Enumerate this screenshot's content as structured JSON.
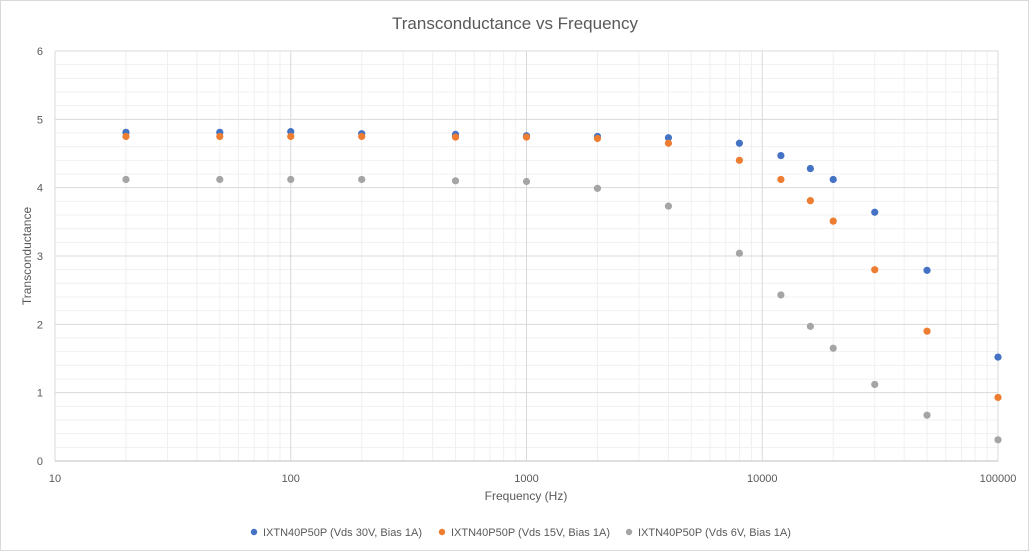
{
  "chart_data": {
    "type": "scatter",
    "title": "Transconductance vs Frequency",
    "xlabel": "Frequency (Hz)",
    "ylabel": "Transconductance",
    "xscale": "log",
    "xlim": [
      10,
      100000
    ],
    "ylim": [
      0,
      6
    ],
    "x_ticks": [
      "10",
      "100",
      "1000",
      "10000",
      "100000"
    ],
    "y_ticks": [
      "0",
      "1",
      "2",
      "3",
      "4",
      "5",
      "6"
    ],
    "grid": true,
    "legend_position": "bottom",
    "x": [
      20,
      50,
      100,
      200,
      500,
      1000,
      2000,
      4000,
      8000,
      12000,
      16000,
      20000,
      30000,
      50000,
      100000
    ],
    "series": [
      {
        "name": "IXTN40P50P (Vds 30V, Bias 1A)",
        "color": "#4472c4",
        "values": [
          4.81,
          4.81,
          4.82,
          4.79,
          4.78,
          4.76,
          4.75,
          4.73,
          4.65,
          4.47,
          4.28,
          4.12,
          3.64,
          2.79,
          1.52
        ]
      },
      {
        "name": "IXTN40P50P (Vds 15V, Bias 1A)",
        "color": "#ed7d31",
        "values": [
          4.75,
          4.75,
          4.75,
          4.75,
          4.74,
          4.74,
          4.72,
          4.65,
          4.4,
          4.12,
          3.81,
          3.51,
          2.8,
          1.9,
          0.93
        ]
      },
      {
        "name": "IXTN40P50P (Vds 6V, Bias 1A)",
        "color": "#a5a5a5",
        "values": [
          4.12,
          4.12,
          4.12,
          4.12,
          4.1,
          4.09,
          3.99,
          3.73,
          3.04,
          2.43,
          1.97,
          1.65,
          1.12,
          0.67,
          0.31
        ]
      }
    ]
  }
}
